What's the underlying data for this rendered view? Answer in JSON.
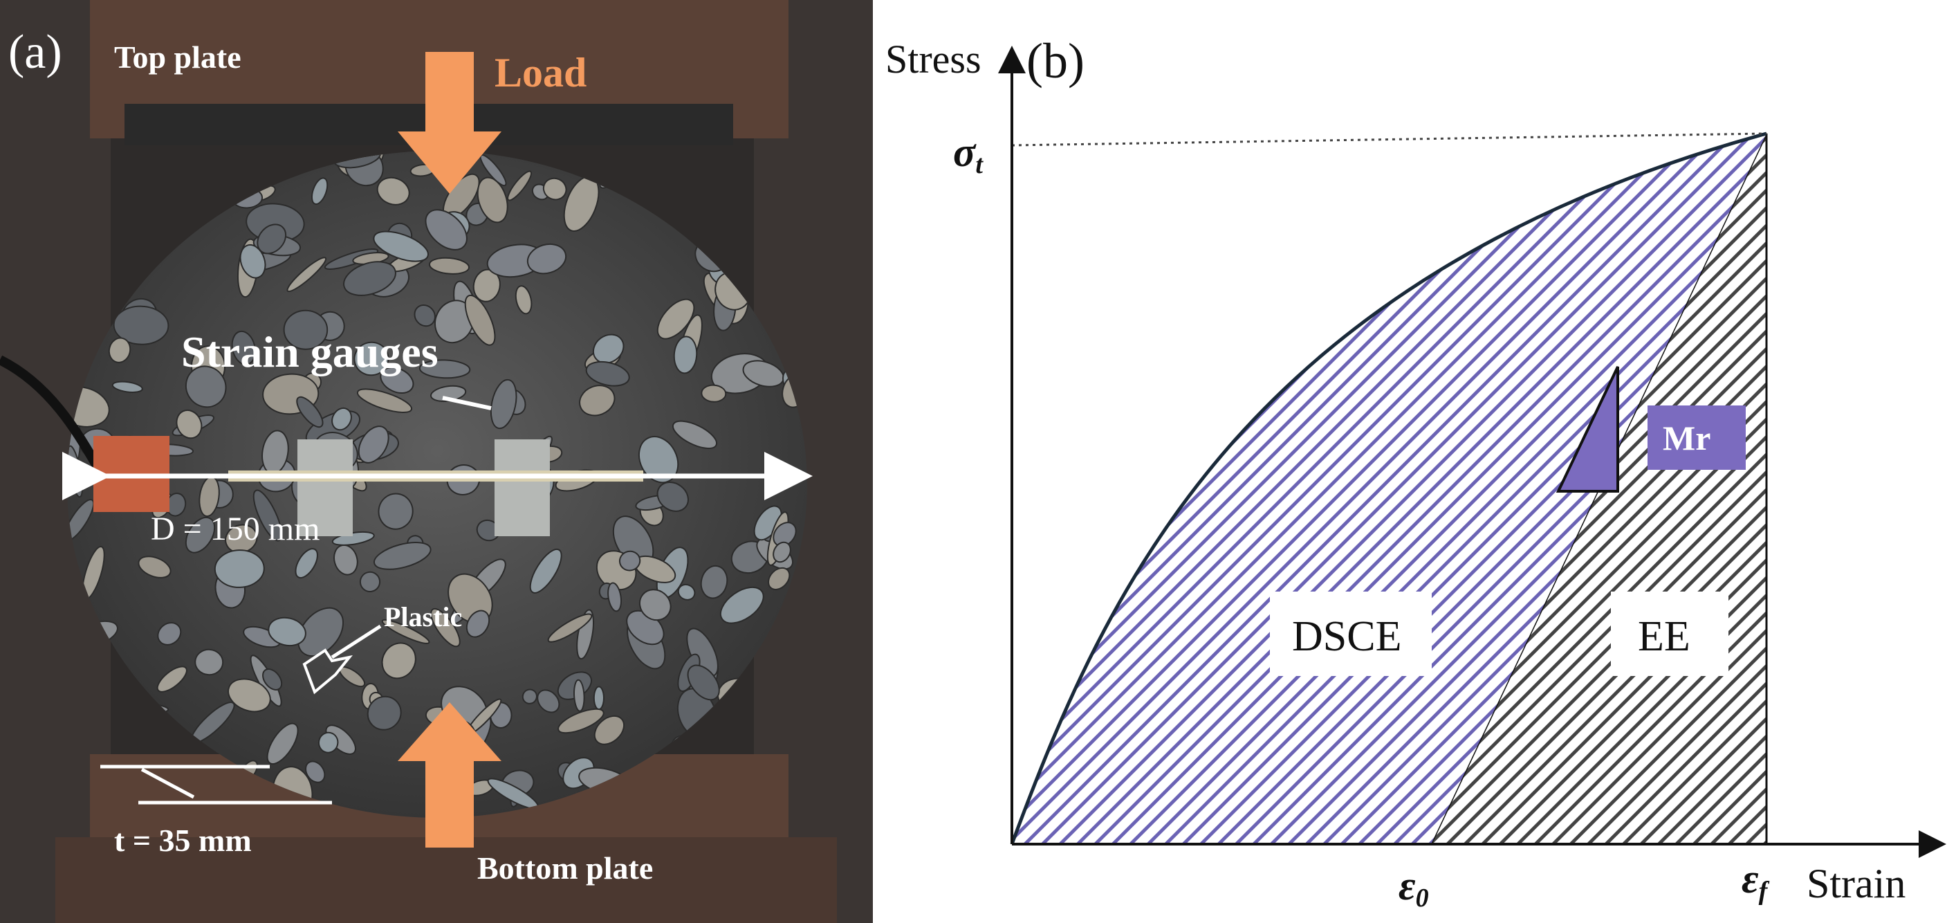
{
  "panel_a": {
    "label": "(a)",
    "top_plate": "Top plate",
    "load": "Load",
    "strain_gauges": "Strain gauges",
    "diameter": "D = 150 mm",
    "plastic": "Plastic",
    "thickness": "t = 35 mm",
    "bottom_plate": "Bottom plate",
    "colors": {
      "arrow": "#f59b5f",
      "specimen": "#4c4c4c",
      "plate": "#5a4136",
      "frame": "#2e2b2a"
    }
  },
  "panel_b": {
    "label": "(b)",
    "y_axis": "Stress",
    "x_axis": "Strain",
    "sigma_t": {
      "main": "σ",
      "sub": "t"
    },
    "eps_0": {
      "main": "ε",
      "sub": "0"
    },
    "eps_f": {
      "main": "ε",
      "sub": "f"
    },
    "dsce": "DSCE",
    "ee": "EE",
    "mr": "Mr",
    "colors": {
      "dsce_hatch": "#6b63b5",
      "ee_hatch": "#444444",
      "mr_box": "#7b6bbf",
      "curve": "#1a2a3a"
    }
  }
}
